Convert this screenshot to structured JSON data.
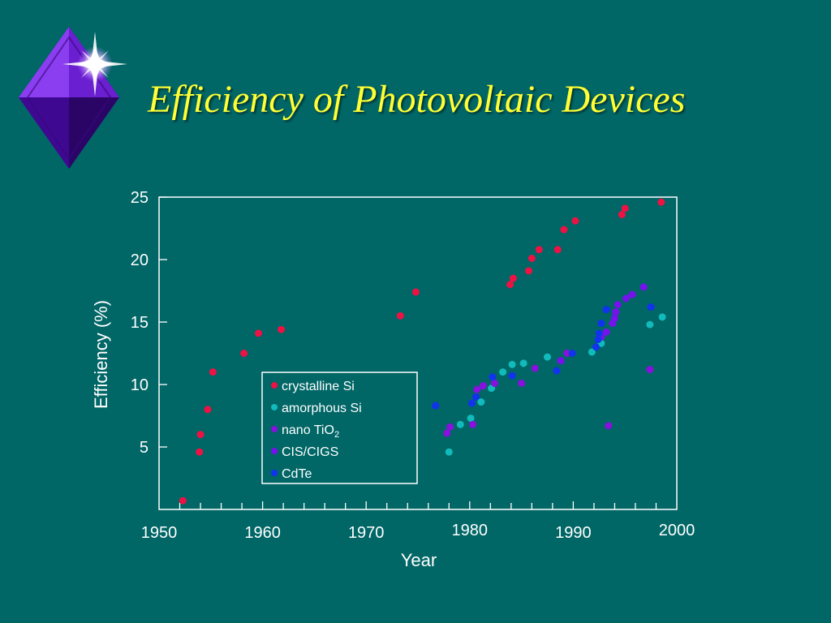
{
  "slide": {
    "title": "Efficiency of Photovoltaic Devices",
    "colors": {
      "background": "#006666",
      "title": "#ffff33",
      "bullet": "#6a1fd0"
    },
    "bullet_icon": "purple-diamond-star-icon"
  },
  "chart_data": {
    "type": "scatter",
    "title": "",
    "xlabel": "Year",
    "ylabel": "Efficiency (%)",
    "xlim": [
      1950,
      2000
    ],
    "ylim": [
      0,
      25
    ],
    "xticks": [
      "1950",
      "1960",
      "1970",
      "1980",
      "1990",
      "2000"
    ],
    "yticks": [
      "5",
      "10",
      "15",
      "20",
      "25"
    ],
    "grid": false,
    "legend_position": "center-left",
    "legend": [
      {
        "label": "crystalline Si",
        "base": "crystalline Si",
        "sub": "",
        "color": "#ee1144"
      },
      {
        "label": "amorphous Si",
        "base": "amorphous Si",
        "sub": "",
        "color": "#11bbbb"
      },
      {
        "label": "nano TiO2",
        "base": "nano TiO",
        "sub": "2",
        "color": "#8811dd"
      },
      {
        "label": "CIS/CIGS",
        "base": "CIS/CIGS",
        "sub": "",
        "color": "#7711ee"
      },
      {
        "label": "CdTe",
        "base": "CdTe",
        "sub": "",
        "color": "#1133ee"
      }
    ],
    "series": [
      {
        "name": "crystalline Si",
        "color": "#ee1144",
        "points": [
          [
            1952.3,
            0.7
          ],
          [
            1953.9,
            4.6
          ],
          [
            1954.0,
            6.0
          ],
          [
            1954.7,
            8.0
          ],
          [
            1955.2,
            11.0
          ],
          [
            1958.2,
            12.5
          ],
          [
            1959.6,
            14.1
          ],
          [
            1961.8,
            14.4
          ],
          [
            1973.3,
            15.5
          ],
          [
            1974.8,
            17.4
          ],
          [
            1983.9,
            18.0
          ],
          [
            1984.2,
            18.5
          ],
          [
            1985.7,
            19.1
          ],
          [
            1986.0,
            20.1
          ],
          [
            1986.7,
            20.8
          ],
          [
            1988.5,
            20.8
          ],
          [
            1989.1,
            22.4
          ],
          [
            1990.2,
            23.1
          ],
          [
            1994.7,
            23.6
          ],
          [
            1995.0,
            24.1
          ],
          [
            1998.5,
            24.6
          ]
        ]
      },
      {
        "name": "amorphous Si",
        "color": "#11bbbb",
        "points": [
          [
            1978.0,
            4.6
          ],
          [
            1979.1,
            6.8
          ],
          [
            1980.1,
            7.3
          ],
          [
            1981.1,
            8.6
          ],
          [
            1982.1,
            9.7
          ],
          [
            1983.2,
            11.0
          ],
          [
            1984.1,
            11.6
          ],
          [
            1985.2,
            11.7
          ],
          [
            1987.5,
            12.2
          ],
          [
            1991.8,
            12.6
          ],
          [
            1992.7,
            13.3
          ],
          [
            1997.4,
            14.8
          ],
          [
            1998.6,
            15.4
          ]
        ]
      },
      {
        "name": "nano TiO2",
        "color": "#8811dd",
        "points": [
          [
            1977.8,
            6.1
          ],
          [
            1978.1,
            6.6
          ],
          [
            1980.3,
            6.8
          ],
          [
            1980.7,
            9.6
          ],
          [
            1981.3,
            9.9
          ],
          [
            1982.4,
            10.1
          ],
          [
            1985.0,
            10.1
          ],
          [
            1986.3,
            11.3
          ],
          [
            1989.4,
            12.5
          ],
          [
            1993.4,
            6.7
          ],
          [
            1997.4,
            11.2
          ]
        ]
      },
      {
        "name": "CIS/CIGS",
        "color": "#7711ee",
        "points": [
          [
            1988.8,
            11.9
          ],
          [
            1992.7,
            13.8
          ],
          [
            1993.2,
            14.2
          ],
          [
            1993.8,
            14.9
          ],
          [
            1994.0,
            15.3
          ],
          [
            1994.1,
            15.8
          ],
          [
            1994.3,
            16.4
          ],
          [
            1995.1,
            16.9
          ],
          [
            1995.7,
            17.2
          ],
          [
            1996.8,
            17.8
          ]
        ]
      },
      {
        "name": "CdTe",
        "color": "#1133ee",
        "points": [
          [
            1976.7,
            8.3
          ],
          [
            1980.2,
            8.5
          ],
          [
            1980.6,
            9.0
          ],
          [
            1982.2,
            10.6
          ],
          [
            1984.1,
            10.7
          ],
          [
            1988.4,
            11.1
          ],
          [
            1989.9,
            12.5
          ],
          [
            1992.2,
            13.0
          ],
          [
            1992.4,
            13.6
          ],
          [
            1992.5,
            14.1
          ],
          [
            1992.7,
            14.9
          ],
          [
            1993.2,
            16.0
          ],
          [
            1997.5,
            16.2
          ]
        ]
      }
    ]
  }
}
